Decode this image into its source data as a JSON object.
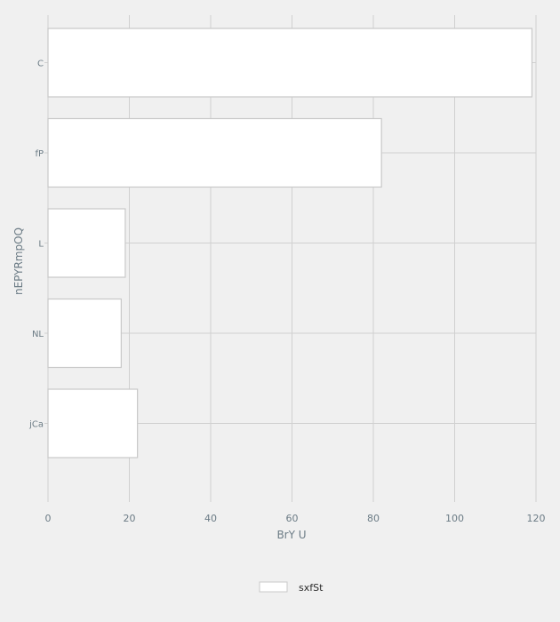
{
  "chart_data": {
    "type": "bar",
    "orientation": "horizontal",
    "categories": [
      "C",
      "fP",
      "L",
      "NL",
      "jCa"
    ],
    "series": [
      {
        "name": "sxfSt",
        "values": [
          119,
          82,
          19,
          18,
          22
        ]
      }
    ],
    "xlabel": "BrY U",
    "ylabel": "nEPYRmpOQ",
    "xlim": [
      0,
      120
    ],
    "xticks": [
      0,
      20,
      40,
      60,
      80,
      100,
      120
    ],
    "grid": true,
    "legend_position": "bottom-center",
    "colors": {
      "background": "#f0f0f0",
      "bar_fill": "#ffffff",
      "bar_stroke": "#c8c8c8",
      "grid": "#d0d0d0",
      "text": "#6b7b85"
    }
  }
}
